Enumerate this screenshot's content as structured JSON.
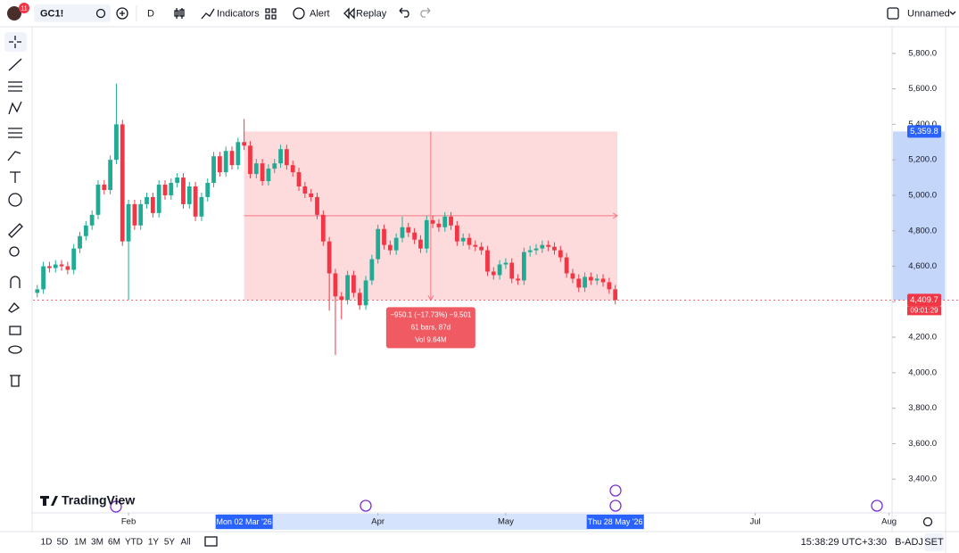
{
  "toolbar": {
    "symbol": "GC1!",
    "badge": "11",
    "interval": "D",
    "indicators": "Indicators",
    "alert": "Alert",
    "replay": "Replay",
    "layout": "Unnamed"
  },
  "chart_data": {
    "type": "candlestick",
    "logo": "TradingView",
    "series": [
      {
        "open": [
          4450,
          4470,
          4600,
          4590,
          4610,
          4600,
          4580,
          4700,
          4770,
          4830,
          4890,
          5060,
          5030,
          5200,
          5400,
          4740,
          4950,
          4830,
          4950,
          4990,
          4900,
          5060,
          5000,
          5070,
          5100,
          4950,
          5050,
          4880,
          4990,
          5070,
          5220,
          5130,
          5250,
          5170,
          5300,
          5280,
          5120,
          5180,
          5080,
          5150,
          5180,
          5260,
          5170,
          5130,
          5050,
          5010,
          4990,
          4890,
          4740,
          4560,
          4430,
          4410,
          4550,
          4450,
          4380,
          4520,
          4640,
          4810,
          4720,
          4690,
          4760,
          4820,
          4790,
          4750,
          4700,
          4860,
          4840,
          4820,
          4880,
          4830,
          4740,
          4760,
          4720,
          4710,
          4690,
          4570,
          4550,
          4610,
          4620,
          4530,
          4520,
          4680,
          4690,
          4700,
          4720,
          4710,
          4690,
          4650,
          4560,
          4530,
          4480,
          4540,
          4520,
          4530,
          4510,
          4470
        ],
        "high": [
          4495,
          4625,
          4625,
          4635,
          4635,
          4625,
          4725,
          4795,
          4855,
          4915,
          5085,
          5085,
          5225,
          5630,
          5425,
          4975,
          4975,
          4975,
          5015,
          5015,
          5085,
          5085,
          5095,
          5125,
          5125,
          5075,
          5075,
          5015,
          5095,
          5245,
          5245,
          5275,
          5275,
          5325,
          5430,
          5305,
          5205,
          5205,
          5175,
          5205,
          5285,
          5285,
          5195,
          5155,
          5075,
          5035,
          5015,
          4915,
          4765,
          4585,
          4455,
          4575,
          4575,
          4475,
          4545,
          4665,
          4835,
          4835,
          4745,
          4785,
          4880,
          4845,
          4815,
          4775,
          4885,
          4885,
          4865,
          4905,
          4905,
          4855,
          4785,
          4785,
          4745,
          4735,
          4715,
          4595,
          4635,
          4645,
          4645,
          4555,
          4705,
          4715,
          4725,
          4745,
          4745,
          4735,
          4715,
          4675,
          4585,
          4555,
          4565,
          4565,
          4555,
          4555,
          4535,
          4495
        ],
        "low": [
          4425,
          4445,
          4565,
          4565,
          4575,
          4555,
          4555,
          4675,
          4745,
          4805,
          4865,
          5005,
          5005,
          5175,
          4715,
          4410,
          4805,
          4805,
          4925,
          4875,
          4875,
          4975,
          4975,
          5045,
          4925,
          4925,
          4855,
          4855,
          4965,
          5045,
          5105,
          5105,
          5145,
          5145,
          5255,
          5095,
          5095,
          5055,
          5055,
          5125,
          5155,
          5145,
          5105,
          5025,
          4985,
          4965,
          4865,
          4715,
          4350,
          4100,
          4300,
          4385,
          4425,
          4355,
          4355,
          4495,
          4615,
          4695,
          4665,
          4665,
          4735,
          4765,
          4725,
          4675,
          4675,
          4815,
          4795,
          4795,
          4805,
          4715,
          4715,
          4695,
          4685,
          4665,
          4545,
          4525,
          4525,
          4585,
          4505,
          4495,
          4495,
          4655,
          4665,
          4675,
          4685,
          4665,
          4625,
          4535,
          4505,
          4455,
          4455,
          4495,
          4495,
          4485,
          4445,
          4385
        ],
        "close": [
          4470,
          4600,
          4590,
          4610,
          4600,
          4580,
          4700,
          4770,
          4830,
          4890,
          5060,
          5030,
          5200,
          5400,
          4740,
          4950,
          4830,
          4950,
          4990,
          4900,
          5060,
          5000,
          5070,
          5100,
          4950,
          5050,
          4880,
          4990,
          5070,
          5220,
          5130,
          5250,
          5170,
          5300,
          5280,
          5120,
          5180,
          5080,
          5150,
          5180,
          5260,
          5170,
          5130,
          5050,
          5010,
          4990,
          4890,
          4740,
          4560,
          4430,
          4410,
          4550,
          4450,
          4380,
          4520,
          4640,
          4810,
          4720,
          4690,
          4760,
          4820,
          4790,
          4750,
          4700,
          4860,
          4840,
          4820,
          4880,
          4830,
          4740,
          4760,
          4720,
          4710,
          4690,
          4570,
          4550,
          4610,
          4620,
          4530,
          4520,
          4680,
          4690,
          4700,
          4720,
          4710,
          4690,
          4650,
          4560,
          4530,
          4480,
          4540,
          4520,
          4530,
          4510,
          4470,
          4409.7
        ]
      }
    ],
    "up_color": "#22ab94",
    "down_color": "#f23645",
    "xlim": [
      -0.7,
      140.5
    ],
    "xticks": [
      {
        "value": 15,
        "label": "Feb"
      },
      {
        "value": 56,
        "label": "Apr"
      },
      {
        "value": 77,
        "label": "May"
      },
      {
        "value": 118,
        "label": "Jul"
      },
      {
        "value": 140,
        "label": "Aug"
      }
    ],
    "ylim": [
      3210,
      5950
    ],
    "yticks": [
      {
        "value": 5800,
        "label": "5,800.0"
      },
      {
        "value": 5600,
        "label": "5,600.0"
      },
      {
        "value": 5400,
        "label": "5,400.0"
      },
      {
        "value": 5200,
        "label": "5,200.0"
      },
      {
        "value": 5000,
        "label": "5,000.0"
      },
      {
        "value": 4800,
        "label": "4,800.0"
      },
      {
        "value": 4600,
        "label": "4,600.0"
      },
      {
        "value": 4400,
        "label": "4,400.0"
      },
      {
        "value": 4200,
        "label": "4,200.0"
      },
      {
        "value": 4000,
        "label": "4,000.0"
      },
      {
        "value": 3800,
        "label": "3,800.0"
      },
      {
        "value": 3600,
        "label": "3,600.0"
      },
      {
        "value": 3400,
        "label": "3,400.0"
      }
    ],
    "last_price": {
      "value": 4409.7,
      "label": "4,409.7"
    },
    "countdown": "09:01:29",
    "measure": {
      "top": {
        "value": 5359.8,
        "label": "5,359.8"
      },
      "start_label": "Mon 02 Mar '26",
      "end_label": "Thu 28 May '26",
      "change": "−950.1 (−17.73%) −9,501",
      "bars": "61 bars, 87d",
      "volume": "Vol 9.64M"
    }
  },
  "bottom_bar": {
    "ranges": [
      "1D",
      "5D",
      "1M",
      "3M",
      "6M",
      "YTD",
      "1Y",
      "5Y",
      "All"
    ],
    "time": "15:38:29 UTC+3:30",
    "adjust": "B-ADJ",
    "session": "SET"
  }
}
